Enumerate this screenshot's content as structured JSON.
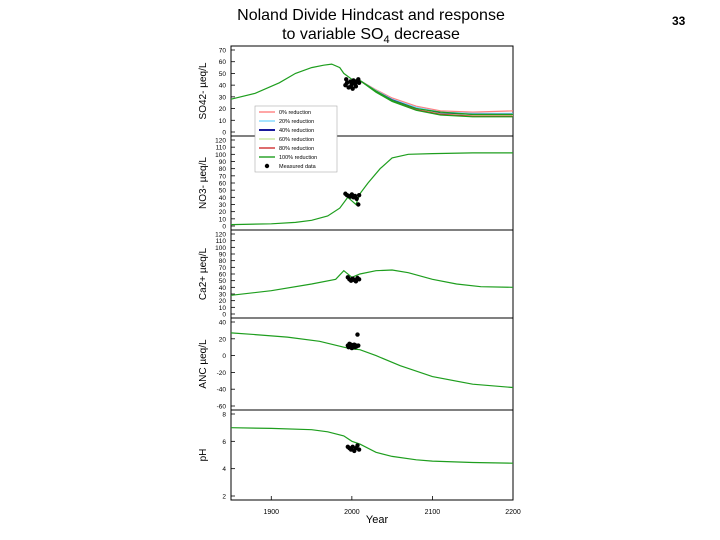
{
  "slide": {
    "number": "33"
  },
  "title": {
    "line1": "Noland Divide Hindcast and response",
    "line2_prefix": "to variable SO",
    "line2_sub": "4",
    "line2_suffix": " decrease"
  },
  "colors": {
    "r0": "#ff7f7f",
    "r20": "#7fd8ff",
    "r40": "#1a1a9c",
    "r60": "#c8e6a0",
    "r80": "#d03030",
    "r100": "#1e9e1e",
    "measured": "#000000"
  },
  "chart_data": {
    "type": "line",
    "xlabel": "Year",
    "xlim": [
      1850,
      2200
    ],
    "x_ticks": [
      "1900",
      "2000",
      "2100",
      "2200"
    ],
    "legend": {
      "placement": "top-left of panel 1",
      "entries": [
        "0% reduction",
        "20% reduction",
        "40% reduction",
        "60% reduction",
        "80% reduction",
        "100% reduction",
        "Measured data"
      ]
    },
    "panels": [
      {
        "id": "so4",
        "ylabel": "SO42- µeq/L",
        "ylim": [
          0,
          70
        ],
        "y_ticks": [
          "0",
          "10",
          "20",
          "30",
          "40",
          "50",
          "60",
          "70"
        ],
        "hindcast": [
          [
            1850,
            28
          ],
          [
            1880,
            33
          ],
          [
            1910,
            42
          ],
          [
            1930,
            50
          ],
          [
            1950,
            55
          ],
          [
            1965,
            57
          ],
          [
            1975,
            58
          ],
          [
            1985,
            55
          ],
          [
            1990,
            50
          ],
          [
            2000,
            45
          ],
          [
            2010,
            44
          ],
          [
            2030,
            35
          ],
          [
            2050,
            27
          ],
          [
            2080,
            20
          ],
          [
            2110,
            17
          ],
          [
            2150,
            15
          ],
          [
            2200,
            15
          ]
        ],
        "series": [
          {
            "name": "0% reduction",
            "values": [
              [
                2010,
                44
              ],
              [
                2030,
                36
              ],
              [
                2050,
                29
              ],
              [
                2080,
                22
              ],
              [
                2110,
                18
              ],
              [
                2150,
                17
              ],
              [
                2200,
                18
              ]
            ]
          },
          {
            "name": "20% reduction",
            "values": [
              [
                2010,
                44
              ],
              [
                2030,
                35.5
              ],
              [
                2050,
                28
              ],
              [
                2080,
                21
              ],
              [
                2110,
                17
              ],
              [
                2150,
                16
              ],
              [
                2200,
                16
              ]
            ]
          },
          {
            "name": "40% reduction",
            "values": [
              [
                2010,
                44
              ],
              [
                2030,
                35
              ],
              [
                2050,
                27.5
              ],
              [
                2080,
                20
              ],
              [
                2110,
                16
              ],
              [
                2150,
                15
              ],
              [
                2200,
                15
              ]
            ]
          },
          {
            "name": "60% reduction",
            "values": [
              [
                2010,
                44
              ],
              [
                2030,
                35
              ],
              [
                2050,
                27
              ],
              [
                2080,
                19.5
              ],
              [
                2110,
                15.5
              ],
              [
                2150,
                14
              ],
              [
                2200,
                14
              ]
            ]
          },
          {
            "name": "80% reduction",
            "values": [
              [
                2010,
                44
              ],
              [
                2030,
                34.5
              ],
              [
                2050,
                26.5
              ],
              [
                2080,
                19
              ],
              [
                2110,
                15
              ],
              [
                2150,
                13.5
              ],
              [
                2200,
                13.5
              ]
            ]
          },
          {
            "name": "100% reduction",
            "values": [
              [
                2010,
                44
              ],
              [
                2030,
                34
              ],
              [
                2050,
                26
              ],
              [
                2080,
                18.5
              ],
              [
                2110,
                14.5
              ],
              [
                2150,
                13
              ],
              [
                2200,
                13
              ]
            ]
          }
        ],
        "measured": [
          [
            1992,
            40
          ],
          [
            1993,
            45
          ],
          [
            1994,
            42
          ],
          [
            1996,
            38
          ],
          [
            1998,
            43
          ],
          [
            1999,
            39
          ],
          [
            2000,
            41
          ],
          [
            2001,
            37
          ],
          [
            2002,
            44
          ],
          [
            2004,
            41
          ],
          [
            2005,
            39
          ],
          [
            2006,
            43
          ],
          [
            2008,
            45
          ],
          [
            2009,
            42
          ]
        ]
      },
      {
        "id": "no3",
        "ylabel": "NO3- µeq/L",
        "ylim": [
          0,
          120
        ],
        "y_ticks": [
          "0",
          "10",
          "20",
          "30",
          "40",
          "50",
          "60",
          "70",
          "80",
          "90",
          "100",
          "110",
          "120"
        ],
        "hindcast": [
          [
            1850,
            2
          ],
          [
            1900,
            3
          ],
          [
            1930,
            5
          ],
          [
            1950,
            8
          ],
          [
            1970,
            14
          ],
          [
            1985,
            25
          ],
          [
            1995,
            40
          ],
          [
            2000,
            35
          ],
          [
            2005,
            30
          ],
          [
            2010,
            45
          ],
          [
            2020,
            60
          ],
          [
            2035,
            80
          ],
          [
            2050,
            95
          ],
          [
            2070,
            100
          ],
          [
            2100,
            101
          ],
          [
            2150,
            102
          ],
          [
            2200,
            102
          ]
        ],
        "measured": [
          [
            1992,
            45
          ],
          [
            1994,
            43
          ],
          [
            1996,
            42
          ],
          [
            1998,
            41
          ],
          [
            2000,
            44
          ],
          [
            2002,
            40
          ],
          [
            2004,
            42
          ],
          [
            2006,
            38
          ],
          [
            2008,
            30
          ],
          [
            2009,
            43
          ]
        ]
      },
      {
        "id": "ca",
        "ylabel": "Ca2+ µeq/L",
        "ylim": [
          0,
          120
        ],
        "y_ticks": [
          "0",
          "10",
          "20",
          "30",
          "40",
          "50",
          "60",
          "70",
          "80",
          "90",
          "100",
          "110",
          "120"
        ],
        "hindcast": [
          [
            1850,
            28
          ],
          [
            1900,
            35
          ],
          [
            1950,
            45
          ],
          [
            1980,
            52
          ],
          [
            1990,
            65
          ],
          [
            2000,
            55
          ],
          [
            2010,
            60
          ],
          [
            2030,
            65
          ],
          [
            2050,
            66
          ],
          [
            2070,
            62
          ],
          [
            2100,
            52
          ],
          [
            2130,
            45
          ],
          [
            2160,
            41
          ],
          [
            2200,
            40
          ]
        ],
        "measured": [
          [
            1995,
            55
          ],
          [
            1997,
            52
          ],
          [
            1999,
            50
          ],
          [
            2001,
            53
          ],
          [
            2003,
            51
          ],
          [
            2005,
            49
          ],
          [
            2007,
            54
          ],
          [
            2009,
            52
          ]
        ]
      },
      {
        "id": "anc",
        "ylabel": "ANC µeq/L",
        "ylim": [
          -60,
          40
        ],
        "y_ticks": [
          "-60",
          "-40",
          "-20",
          "0",
          "20",
          "40"
        ],
        "hindcast": [
          [
            1850,
            27
          ],
          [
            1880,
            25
          ],
          [
            1920,
            22
          ],
          [
            1960,
            17
          ],
          [
            1990,
            10
          ],
          [
            2000,
            8
          ],
          [
            2010,
            7
          ],
          [
            2030,
            0
          ],
          [
            2060,
            -12
          ],
          [
            2100,
            -25
          ],
          [
            2150,
            -34
          ],
          [
            2200,
            -38
          ]
        ],
        "measured": [
          [
            1995,
            12
          ],
          [
            1996,
            10
          ],
          [
            1997,
            14
          ],
          [
            1998,
            11
          ],
          [
            1999,
            13
          ],
          [
            2000,
            9
          ],
          [
            2001,
            12
          ],
          [
            2002,
            11
          ],
          [
            2003,
            13
          ],
          [
            2004,
            10
          ],
          [
            2005,
            12
          ],
          [
            2006,
            11
          ],
          [
            2007,
            25
          ],
          [
            2008,
            12
          ]
        ]
      },
      {
        "id": "ph",
        "ylabel": "pH",
        "ylim": [
          2,
          8
        ],
        "y_ticks": [
          "2",
          "4",
          "6",
          "8"
        ],
        "hindcast": [
          [
            1850,
            7.0
          ],
          [
            1900,
            6.95
          ],
          [
            1950,
            6.85
          ],
          [
            1970,
            6.7
          ],
          [
            1990,
            6.4
          ],
          [
            2000,
            6.0
          ],
          [
            2010,
            5.8
          ],
          [
            2030,
            5.2
          ],
          [
            2050,
            4.9
          ],
          [
            2080,
            4.65
          ],
          [
            2100,
            4.55
          ],
          [
            2150,
            4.45
          ],
          [
            2200,
            4.4
          ]
        ],
        "measured": [
          [
            1995,
            5.6
          ],
          [
            1997,
            5.5
          ],
          [
            1999,
            5.4
          ],
          [
            2001,
            5.6
          ],
          [
            2003,
            5.3
          ],
          [
            2005,
            5.5
          ],
          [
            2007,
            5.7
          ],
          [
            2009,
            5.4
          ]
        ]
      }
    ]
  }
}
